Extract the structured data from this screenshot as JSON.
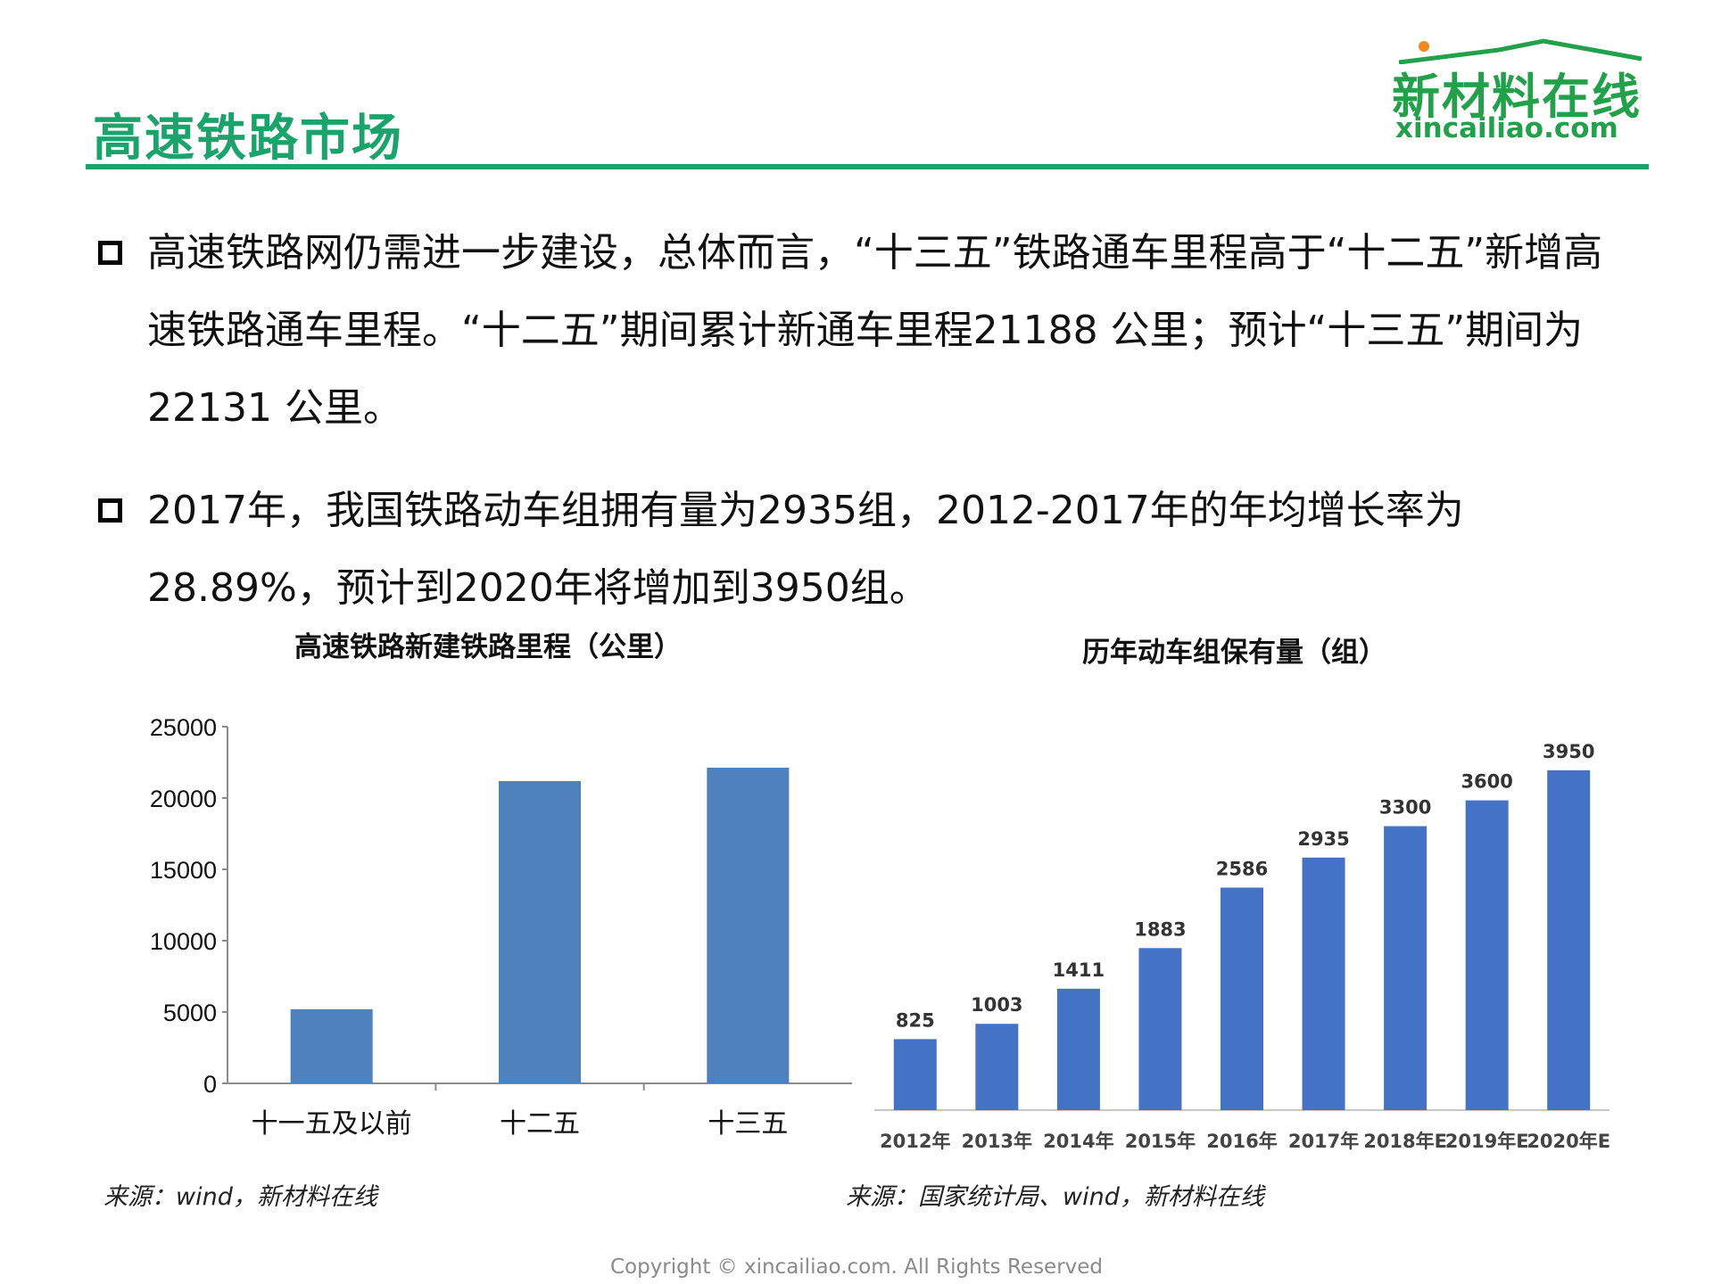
{
  "header": {
    "title": "高速铁路市场",
    "logo_text": "新材料在线",
    "logo_url": "xincailiao.com"
  },
  "bullets": [
    "高速铁路网仍需进一步建设，总体而言，“十三五”铁路通车里程高于“十二五”新增高速铁路通车里程。“十二五”期间累计新通车里程21188 公里；预计“十三五”期间为22131 公里。",
    "2017年，我国铁路动车组拥有量为2935组，2012-2017年的年均增长率为28.89%，预计到2020年将增加到3950组。"
  ],
  "chart_data": [
    {
      "type": "bar",
      "title": "高速铁路新建铁路里程（公里）",
      "categories": [
        "十一五及以前",
        "十二五",
        "十三五"
      ],
      "values": [
        5200,
        21188,
        22131
      ],
      "ylim": [
        0,
        25000
      ],
      "yticks": [
        "0",
        "5000",
        "10000",
        "15000",
        "20000",
        "25000"
      ],
      "color": "#4f81bd",
      "source": "来源：wind，新材料在线"
    },
    {
      "type": "bar",
      "title": "历年动车组保有量（组）",
      "categories": [
        "2012年",
        "2013年",
        "2014年",
        "2015年",
        "2016年",
        "2017年",
        "2018年E",
        "2019年E",
        "2020年E"
      ],
      "values": [
        825,
        1003,
        1411,
        1883,
        2586,
        2935,
        3300,
        3600,
        3950
      ],
      "data_labels": [
        "825",
        "1003",
        "1411",
        "1883",
        "2586",
        "2935",
        "3300",
        "3600",
        "3950"
      ],
      "ylim": [
        0,
        4000
      ],
      "color": "#4472c4",
      "source": "来源：国家统计局、wind，新材料在线"
    }
  ],
  "footer": {
    "copyright": "Copyright © xincailiao.com. All Rights Reserved"
  }
}
